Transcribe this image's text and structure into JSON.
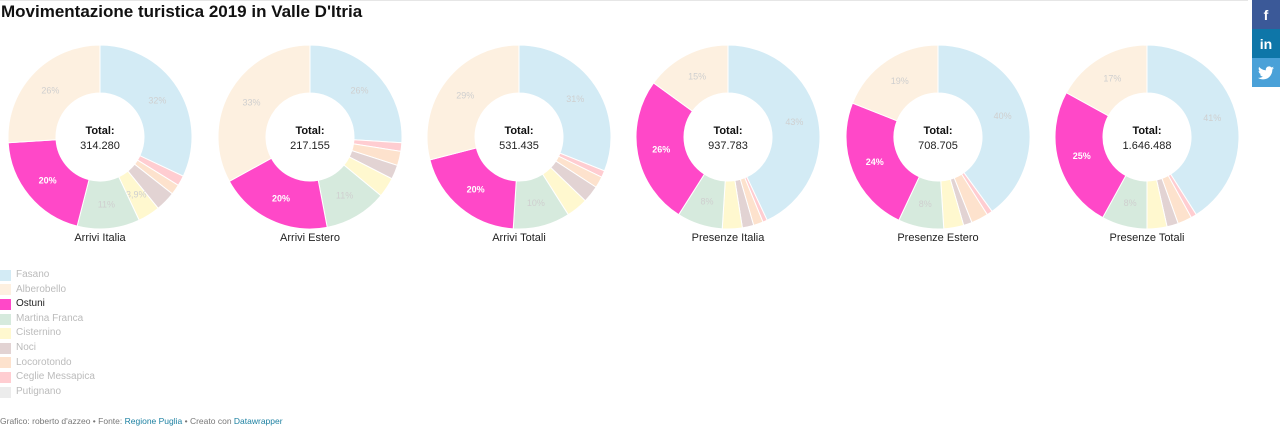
{
  "title": "Movimentazione turistica 2019 in Valle D'Itria",
  "social": {
    "facebook": "f",
    "linkedin": "in",
    "twitter": "t"
  },
  "total_label": "Total:",
  "highlight": "Ostuni",
  "colors": {
    "Fasano": "#d3ebf5",
    "Alberobello": "#fdf0e0",
    "Ostuni": "#ff48c8",
    "Martina Franca": "#d6eadd",
    "Cisternino": "#fff8cf",
    "Noci": "#e2d3d3",
    "Locorotondo": "#fde2cd",
    "Ceglie Messapica": "#ffcdd1",
    "Putignano": "#ececec"
  },
  "legend": [
    "Fasano",
    "Alberobello",
    "Ostuni",
    "Martina Franca",
    "Cisternino",
    "Noci",
    "Locorotondo",
    "Ceglie Messapica",
    "Putignano"
  ],
  "chart_data": [
    {
      "type": "pie",
      "title": "Arrivi Italia",
      "total": "314.280",
      "slices": [
        {
          "name": "Fasano",
          "value": 32,
          "label": "32%"
        },
        {
          "name": "Alberobello",
          "value": 26,
          "label": "26%"
        },
        {
          "name": "Ostuni",
          "value": 20,
          "label": "20%"
        },
        {
          "name": "Martina Franca",
          "value": 11,
          "label": "11%"
        },
        {
          "name": "Cisternino",
          "value": 3.9,
          "label": "3,9%"
        },
        {
          "name": "Noci",
          "value": 3.5,
          "label": ""
        },
        {
          "name": "Locorotondo",
          "value": 1.8,
          "label": ""
        },
        {
          "name": "Ceglie Messapica",
          "value": 1.8,
          "label": ""
        }
      ]
    },
    {
      "type": "pie",
      "title": "Arrivi Estero",
      "total": "217.155",
      "slices": [
        {
          "name": "Fasano",
          "value": 26,
          "label": "26%"
        },
        {
          "name": "Alberobello",
          "value": 33,
          "label": "33%"
        },
        {
          "name": "Ostuni",
          "value": 20,
          "label": "20%"
        },
        {
          "name": "Martina Franca",
          "value": 11,
          "label": "11%"
        },
        {
          "name": "Cisternino",
          "value": 3.5,
          "label": ""
        },
        {
          "name": "Noci",
          "value": 2.5,
          "label": ""
        },
        {
          "name": "Locorotondo",
          "value": 2.5,
          "label": ""
        },
        {
          "name": "Ceglie Messapica",
          "value": 1.5,
          "label": ""
        }
      ]
    },
    {
      "type": "pie",
      "title": "Arrivi Totali",
      "total": "531.435",
      "slices": [
        {
          "name": "Fasano",
          "value": 31,
          "label": "31%"
        },
        {
          "name": "Alberobello",
          "value": 29,
          "label": "29%"
        },
        {
          "name": "Ostuni",
          "value": 20,
          "label": "20%"
        },
        {
          "name": "Martina Franca",
          "value": 10,
          "label": "10%"
        },
        {
          "name": "Cisternino",
          "value": 3.8,
          "label": ""
        },
        {
          "name": "Noci",
          "value": 3,
          "label": ""
        },
        {
          "name": "Locorotondo",
          "value": 2,
          "label": ""
        },
        {
          "name": "Ceglie Messapica",
          "value": 1.2,
          "label": ""
        }
      ]
    },
    {
      "type": "pie",
      "title": "Presenze Italia",
      "total": "937.783",
      "slices": [
        {
          "name": "Fasano",
          "value": 43,
          "label": "43%"
        },
        {
          "name": "Alberobello",
          "value": 15,
          "label": "15%"
        },
        {
          "name": "Ostuni",
          "value": 26,
          "label": "26%"
        },
        {
          "name": "Martina Franca",
          "value": 8,
          "label": "8%"
        },
        {
          "name": "Cisternino",
          "value": 3.5,
          "label": ""
        },
        {
          "name": "Noci",
          "value": 2,
          "label": ""
        },
        {
          "name": "Locorotondo",
          "value": 1.7,
          "label": ""
        },
        {
          "name": "Ceglie Messapica",
          "value": 0.8,
          "label": ""
        }
      ]
    },
    {
      "type": "pie",
      "title": "Presenze Estero",
      "total": "708.705",
      "slices": [
        {
          "name": "Fasano",
          "value": 40,
          "label": "40%"
        },
        {
          "name": "Alberobello",
          "value": 19,
          "label": "19%"
        },
        {
          "name": "Ostuni",
          "value": 24,
          "label": "24%"
        },
        {
          "name": "Martina Franca",
          "value": 8,
          "label": "8%"
        },
        {
          "name": "Cisternino",
          "value": 3.5,
          "label": ""
        },
        {
          "name": "Noci",
          "value": 1.5,
          "label": ""
        },
        {
          "name": "Locorotondo",
          "value": 3,
          "label": ""
        },
        {
          "name": "Ceglie Messapica",
          "value": 1,
          "label": ""
        }
      ]
    },
    {
      "type": "pie",
      "title": "Presenze Totali",
      "total": "1.646.488",
      "slices": [
        {
          "name": "Fasano",
          "value": 41,
          "label": "41%"
        },
        {
          "name": "Alberobello",
          "value": 17,
          "label": "17%"
        },
        {
          "name": "Ostuni",
          "value": 25,
          "label": "25%"
        },
        {
          "name": "Martina Franca",
          "value": 8,
          "label": "8%"
        },
        {
          "name": "Cisternino",
          "value": 3.5,
          "label": ""
        },
        {
          "name": "Noci",
          "value": 2,
          "label": ""
        },
        {
          "name": "Locorotondo",
          "value": 2.5,
          "label": ""
        },
        {
          "name": "Ceglie Messapica",
          "value": 1,
          "label": ""
        }
      ]
    }
  ],
  "footer": {
    "prefix": "Grafico: roberto d'azzeo • Fonte: ",
    "source_link": "Regione Puglia",
    "middle": " • Creato con ",
    "tool_link": "Datawrapper"
  }
}
